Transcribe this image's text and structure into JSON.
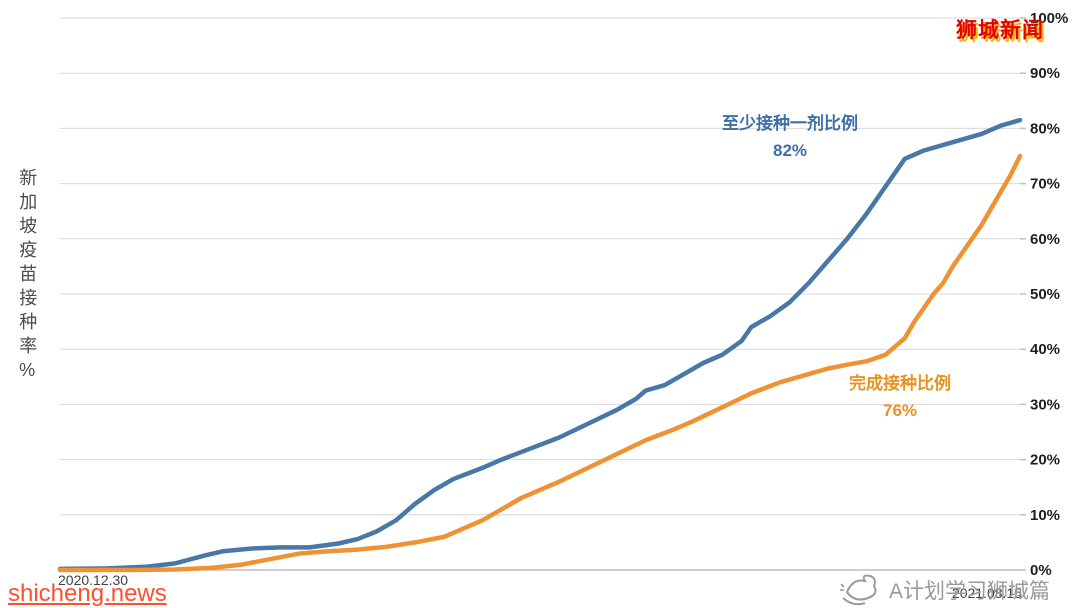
{
  "watermarks": {
    "top_right": "狮城新闻",
    "bottom_left": "shicheng.news",
    "bottom_right": "A计划学习狮城篇"
  },
  "y_axis_title": "新加坡疫苗接种率%",
  "x_axis": {
    "start_label": "2020.12.30",
    "end_label": "2021.08.15"
  },
  "annotations": {
    "blue_label": "至少接种一剂比例",
    "blue_value": "82%",
    "orange_label": "完成接种比例",
    "orange_value": "76%"
  },
  "colors": {
    "blue_series": "#4878A8",
    "orange_series": "#EF9234",
    "gridline": "#d9d9d9",
    "watermark_red": "#e60000",
    "watermark_orange": "#ff4f30",
    "watermark_gray": "#9a9a9a"
  },
  "chart_data": {
    "type": "line",
    "title": "新加坡疫苗接种率%",
    "xlabel": "",
    "ylabel": "新加坡疫苗接种率%",
    "x_range": [
      "2020.12.30",
      "2021.08.15"
    ],
    "ylim": [
      0,
      100
    ],
    "grid": true,
    "legend_position": "inline-annotations",
    "points_format": "[fraction_of_date_range, percent]",
    "y_ticks": [
      {
        "value": 0,
        "label": "0%"
      },
      {
        "value": 10,
        "label": "10%"
      },
      {
        "value": 20,
        "label": "20%"
      },
      {
        "value": 30,
        "label": "30%"
      },
      {
        "value": 40,
        "label": "40%"
      },
      {
        "value": 50,
        "label": "50%"
      },
      {
        "value": 60,
        "label": "60%"
      },
      {
        "value": 70,
        "label": "70%"
      },
      {
        "value": 80,
        "label": "80%"
      },
      {
        "value": 90,
        "label": "90%"
      },
      {
        "value": 100,
        "label": "100%"
      }
    ],
    "series": [
      {
        "name": "至少接种一剂比例",
        "final_value": 82,
        "final_label": "82%",
        "color": "#4878A8",
        "points": [
          [
            0.0,
            0.2
          ],
          [
            0.05,
            0.3
          ],
          [
            0.09,
            0.6
          ],
          [
            0.12,
            1.2
          ],
          [
            0.15,
            2.6
          ],
          [
            0.17,
            3.4
          ],
          [
            0.2,
            3.9
          ],
          [
            0.23,
            4.1
          ],
          [
            0.26,
            4.1
          ],
          [
            0.29,
            4.8
          ],
          [
            0.31,
            5.6
          ],
          [
            0.33,
            7.0
          ],
          [
            0.35,
            9.0
          ],
          [
            0.37,
            12.0
          ],
          [
            0.39,
            14.5
          ],
          [
            0.41,
            16.5
          ],
          [
            0.44,
            18.5
          ],
          [
            0.46,
            20.0
          ],
          [
            0.49,
            22.0
          ],
          [
            0.52,
            24.0
          ],
          [
            0.55,
            26.5
          ],
          [
            0.58,
            29.0
          ],
          [
            0.6,
            31.0
          ],
          [
            0.61,
            32.5
          ],
          [
            0.63,
            33.5
          ],
          [
            0.65,
            35.5
          ],
          [
            0.67,
            37.5
          ],
          [
            0.69,
            39.0
          ],
          [
            0.71,
            41.5
          ],
          [
            0.72,
            44.0
          ],
          [
            0.74,
            46.0
          ],
          [
            0.76,
            48.5
          ],
          [
            0.78,
            52.0
          ],
          [
            0.8,
            56.0
          ],
          [
            0.82,
            60.0
          ],
          [
            0.84,
            64.5
          ],
          [
            0.86,
            69.5
          ],
          [
            0.87,
            72.0
          ],
          [
            0.88,
            74.5
          ],
          [
            0.9,
            76.0
          ],
          [
            0.92,
            77.0
          ],
          [
            0.94,
            78.0
          ],
          [
            0.96,
            79.0
          ],
          [
            0.98,
            80.5
          ],
          [
            1.0,
            81.5
          ]
        ]
      },
      {
        "name": "完成接种比例",
        "final_value": 76,
        "final_label": "76%",
        "color": "#EF9234",
        "points": [
          [
            0.0,
            0.0
          ],
          [
            0.08,
            0.0
          ],
          [
            0.12,
            0.1
          ],
          [
            0.16,
            0.4
          ],
          [
            0.19,
            1.0
          ],
          [
            0.22,
            2.0
          ],
          [
            0.25,
            3.0
          ],
          [
            0.28,
            3.4
          ],
          [
            0.31,
            3.7
          ],
          [
            0.34,
            4.2
          ],
          [
            0.37,
            5.0
          ],
          [
            0.4,
            6.0
          ],
          [
            0.42,
            7.5
          ],
          [
            0.44,
            9.0
          ],
          [
            0.46,
            11.0
          ],
          [
            0.48,
            13.0
          ],
          [
            0.5,
            14.5
          ],
          [
            0.52,
            16.0
          ],
          [
            0.55,
            18.5
          ],
          [
            0.58,
            21.0
          ],
          [
            0.61,
            23.5
          ],
          [
            0.64,
            25.5
          ],
          [
            0.66,
            27.0
          ],
          [
            0.69,
            29.5
          ],
          [
            0.72,
            32.0
          ],
          [
            0.75,
            34.0
          ],
          [
            0.78,
            35.5
          ],
          [
            0.8,
            36.5
          ],
          [
            0.82,
            37.2
          ],
          [
            0.84,
            37.8
          ],
          [
            0.86,
            39.0
          ],
          [
            0.88,
            42.0
          ],
          [
            0.89,
            45.0
          ],
          [
            0.9,
            47.5
          ],
          [
            0.91,
            50.0
          ],
          [
            0.92,
            52.0
          ],
          [
            0.93,
            55.0
          ],
          [
            0.94,
            57.5
          ],
          [
            0.95,
            60.0
          ],
          [
            0.96,
            62.5
          ],
          [
            0.97,
            65.5
          ],
          [
            0.98,
            68.5
          ],
          [
            0.99,
            71.5
          ],
          [
            1.0,
            75.0
          ]
        ]
      }
    ]
  }
}
